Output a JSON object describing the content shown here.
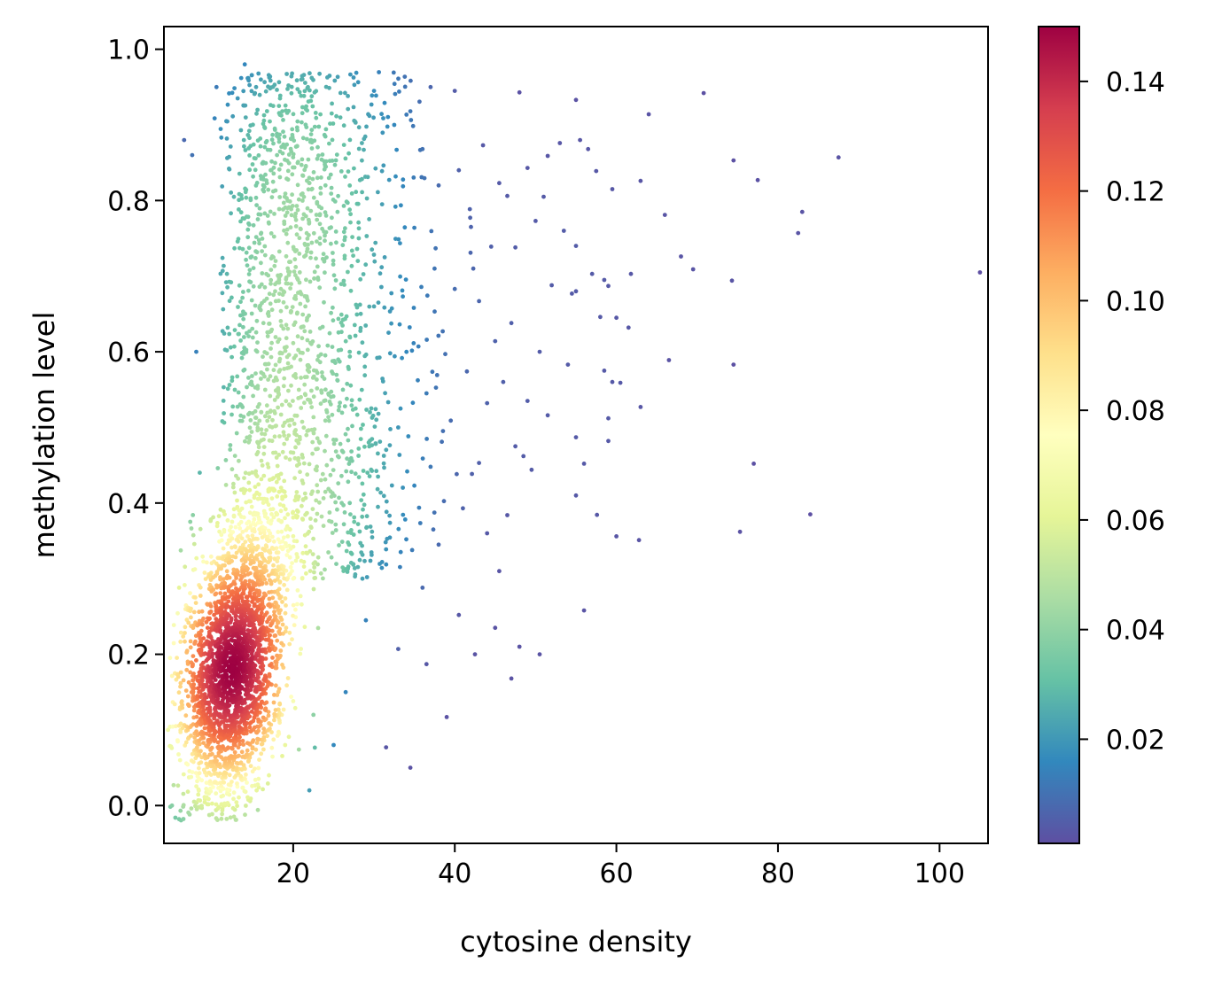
{
  "chart_data": {
    "type": "scatter",
    "title": "",
    "xlabel": "cytosine density",
    "ylabel": "methylation level",
    "xlim": [
      4,
      106
    ],
    "ylim": [
      -0.05,
      1.03
    ],
    "x_ticks": [
      20,
      40,
      60,
      80,
      100
    ],
    "x_tick_labels": [
      "20",
      "40",
      "60",
      "80",
      "100"
    ],
    "y_ticks": [
      0.0,
      0.2,
      0.4,
      0.6,
      0.8,
      1.0
    ],
    "y_tick_labels": [
      "0.0",
      "0.2",
      "0.4",
      "0.6",
      "0.8",
      "1.0"
    ],
    "grid": false,
    "colorbar": {
      "colormap": "Spectral_r",
      "range": [
        0.001,
        0.15
      ],
      "ticks": [
        0.02,
        0.04,
        0.06,
        0.08,
        0.1,
        0.12,
        0.14
      ],
      "tick_labels": [
        "0.02",
        "0.04",
        "0.06",
        "0.08",
        "0.10",
        "0.12",
        "0.14"
      ],
      "colors": [
        "#5e4fa2",
        "#3288bd",
        "#66c2a5",
        "#abdda4",
        "#e6f598",
        "#ffffbf",
        "#fee08b",
        "#fdae61",
        "#f46d43",
        "#d53e4f",
        "#9e0142"
      ]
    },
    "points": [
      [
        105.0,
        0.705
      ],
      [
        87.5,
        0.857
      ],
      [
        84.0,
        0.385
      ],
      [
        83.0,
        0.785
      ],
      [
        82.5,
        0.757
      ],
      [
        77.5,
        0.827
      ],
      [
        77.0,
        0.452
      ],
      [
        75.3,
        0.362
      ],
      [
        74.5,
        0.853
      ],
      [
        74.5,
        0.583
      ],
      [
        74.3,
        0.694
      ],
      [
        70.8,
        0.942
      ],
      [
        69.5,
        0.709
      ],
      [
        68.0,
        0.726
      ],
      [
        66.5,
        0.589
      ],
      [
        66.0,
        0.781
      ],
      [
        64.0,
        0.914
      ],
      [
        63.0,
        0.826
      ],
      [
        63.0,
        0.527
      ],
      [
        62.8,
        0.351
      ],
      [
        61.8,
        0.703
      ],
      [
        61.5,
        0.632
      ],
      [
        60.5,
        0.559
      ],
      [
        60.0,
        0.645
      ],
      [
        60.0,
        0.356
      ],
      [
        59.5,
        0.815
      ],
      [
        59.5,
        0.56
      ],
      [
        59.0,
        0.687
      ],
      [
        59.0,
        0.482
      ],
      [
        59.0,
        0.512
      ],
      [
        58.5,
        0.695
      ],
      [
        58.5,
        0.575
      ],
      [
        58.0,
        0.646
      ],
      [
        57.5,
        0.839
      ],
      [
        57.0,
        0.703
      ],
      [
        56.5,
        0.868
      ],
      [
        56.0,
        0.452
      ],
      [
        56.0,
        0.258
      ],
      [
        55.5,
        0.88
      ],
      [
        55.0,
        0.933
      ],
      [
        55.0,
        0.74
      ],
      [
        55.0,
        0.68
      ],
      [
        55.0,
        0.487
      ],
      [
        55.0,
        0.41
      ],
      [
        54.5,
        0.677
      ],
      [
        54.0,
        0.583
      ],
      [
        53.5,
        0.76
      ],
      [
        53.0,
        0.876
      ],
      [
        52.0,
        0.688
      ],
      [
        51.5,
        0.859
      ],
      [
        51.5,
        0.516
      ],
      [
        51.0,
        0.805
      ],
      [
        50.5,
        0.6
      ],
      [
        50.5,
        0.2
      ],
      [
        50.0,
        0.773
      ],
      [
        49.5,
        0.444
      ],
      [
        49.0,
        0.843
      ],
      [
        49.0,
        0.535
      ],
      [
        48.5,
        0.462
      ],
      [
        48.0,
        0.943
      ],
      [
        48.0,
        0.21
      ],
      [
        47.5,
        0.738
      ],
      [
        47.5,
        0.475
      ],
      [
        47.0,
        0.638
      ],
      [
        47.0,
        0.168
      ],
      [
        46.5,
        0.806
      ],
      [
        46.5,
        0.384
      ],
      [
        46.0,
        0.56
      ],
      [
        45.5,
        0.823
      ],
      [
        45.5,
        0.31
      ],
      [
        45.0,
        0.614
      ],
      [
        45.0,
        0.235
      ],
      [
        44.5,
        0.739
      ],
      [
        44.0,
        0.532
      ],
      [
        44.0,
        0.36
      ],
      [
        43.5,
        0.873
      ],
      [
        43.0,
        0.667
      ],
      [
        43.0,
        0.453
      ],
      [
        42.5,
        0.2
      ],
      [
        42.0,
        0.765
      ],
      [
        41.5,
        0.574
      ],
      [
        41.0,
        0.393
      ],
      [
        40.5,
        0.84
      ],
      [
        40.5,
        0.252
      ],
      [
        40.0,
        0.945
      ],
      [
        40.0,
        0.683
      ],
      [
        39.5,
        0.509
      ],
      [
        39.0,
        0.117
      ],
      [
        38.5,
        0.627
      ],
      [
        38.0,
        0.345
      ],
      [
        38.0,
        0.82
      ],
      [
        37.5,
        0.71
      ],
      [
        37.0,
        0.448
      ],
      [
        37.0,
        0.95
      ],
      [
        36.5,
        0.545
      ],
      [
        36.5,
        0.187
      ],
      [
        36.0,
        0.868
      ],
      [
        36.0,
        0.288
      ],
      [
        35.5,
        0.607
      ],
      [
        35.0,
        0.764
      ],
      [
        35.0,
        0.423
      ],
      [
        34.5,
        0.05
      ],
      [
        34.5,
        0.918
      ],
      [
        34.0,
        0.352
      ],
      [
        33.5,
        0.681
      ],
      [
        33.0,
        0.5
      ],
      [
        33.0,
        0.207
      ],
      [
        32.5,
        0.9
      ],
      [
        32.0,
        0.598
      ],
      [
        31.5,
        0.077
      ],
      [
        31.0,
        0.795
      ],
      [
        31.0,
        0.322
      ],
      [
        30.5,
        0.435
      ],
      [
        30.0,
        0.945
      ],
      [
        30.0,
        0.66
      ],
      [
        29.5,
        0.52
      ],
      [
        29.0,
        0.245
      ],
      [
        28.5,
        0.876
      ],
      [
        28.0,
        0.72
      ],
      [
        27.0,
        0.62
      ],
      [
        26.5,
        0.15
      ],
      [
        26.0,
        0.4
      ],
      [
        25.0,
        0.08
      ],
      [
        24.5,
        0.965
      ],
      [
        24.0,
        0.55
      ],
      [
        23.5,
        0.79
      ],
      [
        22.5,
        0.12
      ],
      [
        22.0,
        0.02
      ],
      [
        21.5,
        0.66
      ],
      [
        21.0,
        0.96
      ],
      [
        20.0,
        0.3
      ],
      [
        19.0,
        0.08
      ],
      [
        18.0,
        0.86
      ],
      [
        17.0,
        0.04
      ],
      [
        16.0,
        0.96
      ],
      [
        14.0,
        0.98
      ],
      [
        13.0,
        0.05
      ],
      [
        11.0,
        0.03
      ],
      [
        10.5,
        0.95
      ],
      [
        9.5,
        0.02
      ],
      [
        8.0,
        0.6
      ],
      [
        7.5,
        0.86
      ],
      [
        6.5,
        0.88
      ],
      [
        6.0,
        0.06
      ],
      [
        5.0,
        0.0
      ],
      [
        4.5,
        0.1
      ]
    ]
  }
}
